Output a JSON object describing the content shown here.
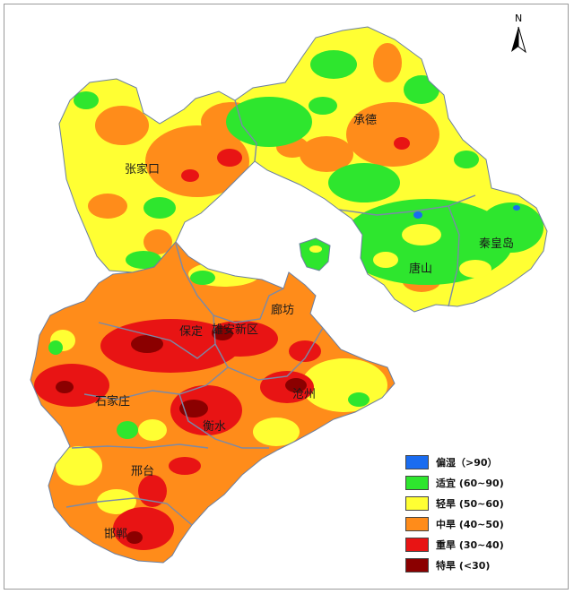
{
  "north_arrow": {
    "label": "N"
  },
  "cities": [
    {
      "name": "张家口"
    },
    {
      "name": "承德"
    },
    {
      "name": "秦皇岛"
    },
    {
      "name": "唐山"
    },
    {
      "name": "廊坊"
    },
    {
      "name": "保定"
    },
    {
      "name": "雄安新区"
    },
    {
      "name": "沧州"
    },
    {
      "name": "石家庄"
    },
    {
      "name": "衡水"
    },
    {
      "name": "邢台"
    },
    {
      "name": "邯郸"
    }
  ],
  "legend": {
    "items": [
      {
        "label": "偏湿（>90）",
        "color": "#1a6cf0"
      },
      {
        "label": "适宜 (60~90)",
        "color": "#2ee62e"
      },
      {
        "label": "轻旱 (50~60)",
        "color": "#ffff33"
      },
      {
        "label": "中旱 (40~50)",
        "color": "#ff8c1a"
      },
      {
        "label": "重旱 (30~40)",
        "color": "#e81414"
      },
      {
        "label": "特旱 (<30)",
        "color": "#8b0000"
      }
    ]
  }
}
